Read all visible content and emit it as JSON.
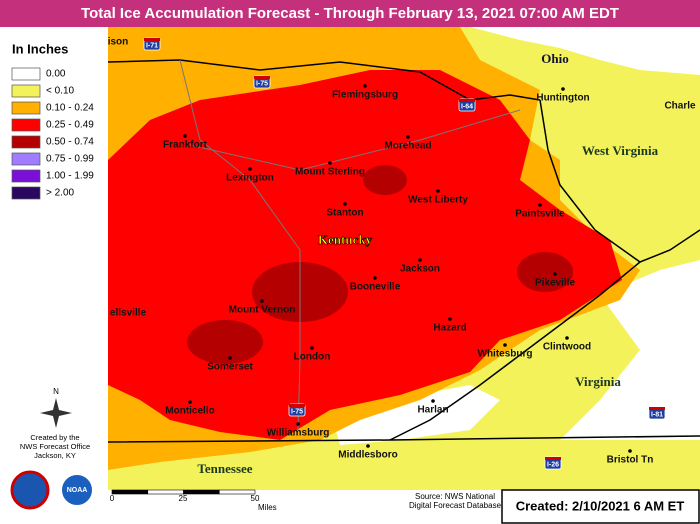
{
  "title": "Total Ice Accumulation Forecast - Through February 13, 2021 07:00 AM EDT",
  "legend": {
    "title": "In Inches",
    "items": [
      {
        "label": "0.00",
        "color": "#ffffff"
      },
      {
        "label": "< 0.10",
        "color": "#f4f25a"
      },
      {
        "label": "0.10 - 0.24",
        "color": "#ffb000"
      },
      {
        "label": "0.25 - 0.49",
        "color": "#ff0000"
      },
      {
        "label": "0.50 - 0.74",
        "color": "#b40000"
      },
      {
        "label": "0.75 - 0.99",
        "color": "#a07cff"
      },
      {
        "label": "1.00 - 1.99",
        "color": "#7a10d8"
      },
      {
        "label": "> 2.00",
        "color": "#2a0860"
      }
    ]
  },
  "cities": [
    "ison",
    "Flemingsburg",
    "Frankfort",
    "Morehead",
    "Mount Sterling",
    "Lexington",
    "West Liberty",
    "Paintsville",
    "Stanton",
    "Jackson",
    "Booneville",
    "Pikeville",
    "ellsville",
    "Mount Vernon",
    "Hazard",
    "Clintwood",
    "London",
    "Whitesburg",
    "Somerset",
    "Monticello",
    "Harlan",
    "Williamsburg",
    "Middlesboro",
    "Bristol Tn",
    "Huntington",
    "Charle"
  ],
  "states": [
    "Ohio",
    "West Virginia",
    "Kentucky",
    "Virginia",
    "Tennessee"
  ],
  "highways": [
    "I-71",
    "I-75",
    "I-64",
    "I-75",
    "I-81",
    "I-26"
  ],
  "compass": "N",
  "credit": [
    "Created by the",
    "NWS Forecast Office",
    "Jackson, KY"
  ],
  "noaa": "NOAA",
  "scale": {
    "labels": [
      "0",
      "25",
      "50"
    ],
    "unit": "Miles"
  },
  "source": [
    "Source: NWS National",
    "Digital Forecast Database"
  ],
  "created": "Created: 2/10/2021 6 AM ET"
}
